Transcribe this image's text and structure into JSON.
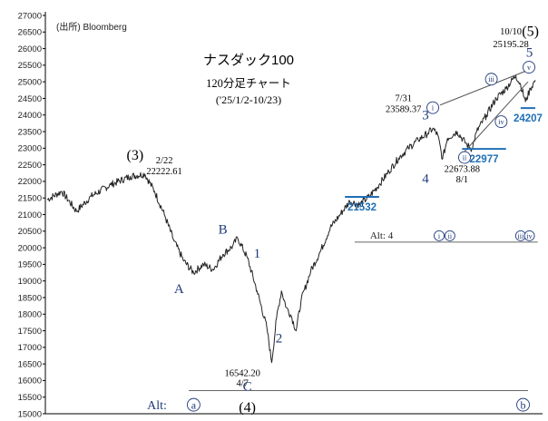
{
  "chart_data": {
    "type": "line",
    "title": "ナスダック100",
    "subtitle": "120分足チャート",
    "period": "('25/1/2-10/23)",
    "source": "(出所) Bloomberg",
    "ylim": [
      15000,
      27000
    ],
    "yticks": [
      15000,
      15500,
      16000,
      16500,
      17000,
      17500,
      18000,
      18500,
      19000,
      19500,
      20000,
      20500,
      21000,
      21500,
      22000,
      22500,
      23000,
      23500,
      24000,
      24500,
      25000,
      25500,
      26000,
      26500,
      27000
    ],
    "ytick_labels": [
      "15000",
      "15500",
      "16000",
      "16500",
      "17000",
      "17500",
      "18000",
      "18500",
      "19000",
      "19500",
      "20000",
      "20500",
      "21000",
      "21500",
      "22000",
      "22500",
      "23000",
      "23500",
      "24000",
      "24500",
      "25000",
      "25500",
      "26000",
      "26500",
      "27000"
    ],
    "series": [
      {
        "x_index_max": 100,
        "anchors": [
          [
            0,
            21450
          ],
          [
            3,
            21700
          ],
          [
            6,
            21100
          ],
          [
            9,
            21550
          ],
          [
            13,
            21900
          ],
          [
            17,
            22150
          ],
          [
            20,
            22222
          ],
          [
            22,
            21700
          ],
          [
            24,
            21000
          ],
          [
            26,
            20200
          ],
          [
            28,
            19600
          ],
          [
            30,
            19250
          ],
          [
            32,
            19500
          ],
          [
            34,
            19350
          ],
          [
            36,
            19800
          ],
          [
            38,
            20050
          ],
          [
            39,
            20300
          ],
          [
            41,
            19700
          ],
          [
            43,
            18700
          ],
          [
            45,
            17600
          ],
          [
            46,
            16542
          ],
          [
            47,
            17900
          ],
          [
            48,
            18700
          ],
          [
            49,
            18200
          ],
          [
            50,
            17950
          ],
          [
            51,
            17500
          ],
          [
            52,
            18400
          ],
          [
            54,
            19300
          ],
          [
            56,
            19900
          ],
          [
            58,
            20600
          ],
          [
            60,
            21000
          ],
          [
            62,
            21400
          ],
          [
            64,
            21300
          ],
          [
            66,
            21550
          ],
          [
            68,
            21900
          ],
          [
            70,
            22300
          ],
          [
            72,
            22700
          ],
          [
            74,
            23000
          ],
          [
            76,
            23250
          ],
          [
            78,
            23450
          ],
          [
            79,
            23590
          ],
          [
            80,
            23400
          ],
          [
            81,
            22673
          ],
          [
            82,
            23300
          ],
          [
            84,
            23500
          ],
          [
            86,
            23100
          ],
          [
            87,
            22977
          ],
          [
            88,
            23500
          ],
          [
            90,
            24000
          ],
          [
            92,
            24500
          ],
          [
            94,
            24800
          ],
          [
            96,
            25195
          ],
          [
            97,
            24900
          ],
          [
            98,
            24400
          ],
          [
            99,
            24800
          ],
          [
            100,
            25050
          ]
        ]
      }
    ],
    "wave_labels": [
      {
        "label": "(3)",
        "x": 18,
        "y": 22650
      },
      {
        "label": "2/22",
        "x": 24,
        "y": 22550
      },
      {
        "label": "22222.61",
        "x": 24,
        "y": 22220
      },
      {
        "label": "A",
        "x": 27,
        "y": 18630
      },
      {
        "label": "B",
        "x": 36,
        "y": 20420
      },
      {
        "label": "1",
        "x": 43,
        "y": 19700
      },
      {
        "label": "2",
        "x": 47.5,
        "y": 17150
      },
      {
        "label": "16542.20",
        "x": 40,
        "y": 16130
      },
      {
        "label": "4/7",
        "x": 40,
        "y": 15830
      },
      {
        "label": "C",
        "x": 41,
        "y": 15700
      },
      {
        "label": "(4)",
        "x": 41,
        "y": 15050
      },
      {
        "label": "3",
        "x": 77.5,
        "y": 23870
      },
      {
        "label": "7/31",
        "x": 73,
        "y": 24420
      },
      {
        "label": "23589.37",
        "x": 73,
        "y": 24090
      },
      {
        "label": "4",
        "x": 77.5,
        "y": 21950
      },
      {
        "label": "22673.88",
        "x": 85,
        "y": 22280
      },
      {
        "label": "8/1",
        "x": 85,
        "y": 21970
      },
      {
        "label": "10/10",
        "x": 95,
        "y": 26420
      },
      {
        "label": "25195.28",
        "x": 95,
        "y": 26050
      },
      {
        "label": "(5)",
        "x": 99,
        "y": 26380
      },
      {
        "label": "5",
        "x": 98.8,
        "y": 25760
      }
    ],
    "circled_labels": [
      {
        "label": "i",
        "x": 79,
        "y": 24220
      },
      {
        "label": "ii",
        "x": 85.5,
        "y": 22720
      },
      {
        "label": "iii",
        "x": 91,
        "y": 25080
      },
      {
        "label": "iv",
        "x": 93,
        "y": 23800
      },
      {
        "label": "v",
        "x": 98.7,
        "y": 25440
      }
    ],
    "levels": [
      {
        "label": "21532",
        "value": 21532,
        "from": 61,
        "to": 68
      },
      {
        "label": "22977",
        "value": 22977,
        "from": 85,
        "to": 94
      },
      {
        "label": "24207",
        "value": 24207,
        "from": 97,
        "to": 100
      }
    ],
    "alt_rows": [
      {
        "label": "Alt: 4",
        "value": 20280,
        "marks": [
          {
            "text": "i",
            "x": 80.3
          },
          {
            "text": "ii",
            "x": 82.5
          },
          {
            "text": "iii",
            "x": 97
          },
          {
            "text": "iv",
            "x": 98.8
          }
        ]
      },
      {
        "label": "Alt:",
        "value": 15270,
        "marks": [
          {
            "text": "a",
            "x": 30
          },
          {
            "text": "b",
            "x": 97.5
          }
        ]
      }
    ],
    "colors": {
      "series": "#222222",
      "level": "#1f6fb5",
      "label": "#1f3a7a",
      "text": "#000000"
    }
  }
}
